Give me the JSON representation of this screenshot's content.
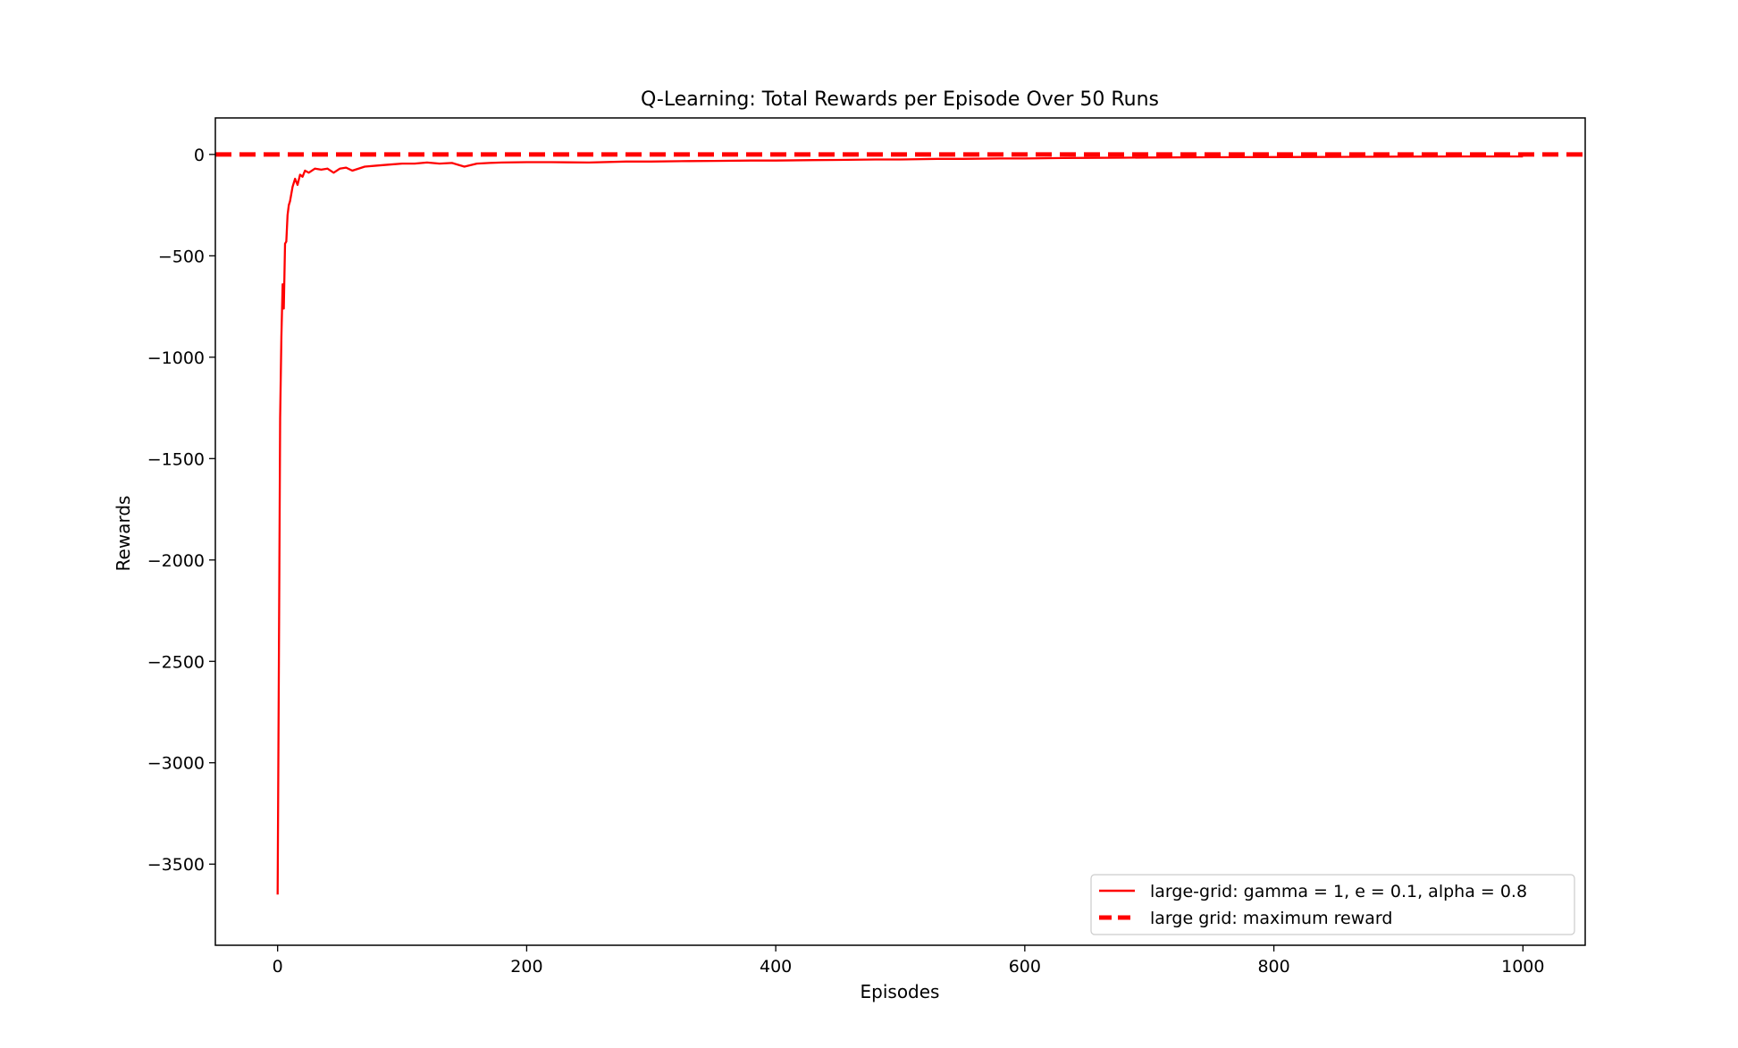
{
  "chart_data": {
    "type": "line",
    "title": "Q-Learning: Total Rewards per Episode Over 50 Runs",
    "xlabel": "Episodes",
    "ylabel": "Rewards",
    "xlim": [
      -50,
      1050
    ],
    "ylim": [
      -3900,
      180
    ],
    "x_ticks": [
      0,
      200,
      400,
      600,
      800,
      1000
    ],
    "x_tick_labels": [
      "0",
      "200",
      "400",
      "600",
      "800",
      "1000"
    ],
    "y_ticks": [
      0,
      -500,
      -1000,
      -1500,
      -2000,
      -2500,
      -3000,
      -3500
    ],
    "y_tick_labels": [
      "0",
      "−500",
      "−1000",
      "−1500",
      "−2000",
      "−2500",
      "−3000",
      "−3500"
    ],
    "grid": false,
    "legend_position": "lower-right",
    "series": [
      {
        "name": "large-grid: gamma = 1, e = 0.1, alpha = 0.8",
        "style": "solid",
        "color": "#ff0000",
        "x": [
          0,
          1,
          2,
          3,
          4,
          5,
          6,
          7,
          8,
          9,
          10,
          12,
          14,
          16,
          18,
          20,
          22,
          25,
          30,
          35,
          40,
          45,
          50,
          55,
          60,
          70,
          80,
          90,
          100,
          110,
          120,
          130,
          140,
          150,
          160,
          170,
          180,
          200,
          220,
          250,
          280,
          300,
          330,
          350,
          380,
          400,
          430,
          450,
          480,
          500,
          530,
          550,
          580,
          600,
          630,
          650,
          680,
          700,
          750,
          800,
          850,
          900,
          950,
          1000
        ],
        "y": [
          -3650,
          -2500,
          -1300,
          -900,
          -640,
          -760,
          -440,
          -430,
          -300,
          -250,
          -230,
          -160,
          -120,
          -150,
          -100,
          -110,
          -80,
          -90,
          -70,
          -75,
          -70,
          -90,
          -70,
          -65,
          -80,
          -60,
          -55,
          -50,
          -45,
          -45,
          -40,
          -45,
          -42,
          -60,
          -45,
          -42,
          -40,
          -38,
          -38,
          -40,
          -35,
          -35,
          -33,
          -32,
          -30,
          -30,
          -28,
          -27,
          -25,
          -25,
          -22,
          -22,
          -20,
          -20,
          -18,
          -17,
          -16,
          -15,
          -14,
          -13,
          -12,
          -11,
          -10,
          -10
        ]
      },
      {
        "name": "large grid: maximum reward",
        "style": "dashed",
        "color": "#ff0000",
        "x": [
          -50,
          1050
        ],
        "y": [
          0,
          0
        ]
      }
    ]
  }
}
